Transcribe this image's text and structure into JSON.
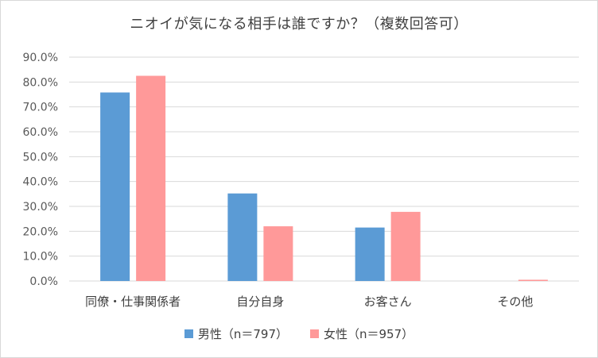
{
  "chart_data": {
    "type": "bar",
    "title": "ニオイが気になる相手は誰ですか？（複数回答可）",
    "categories": [
      "同僚・仕事関係者",
      "自分自身",
      "お客さん",
      "その他"
    ],
    "series": [
      {
        "name": "男性（n＝797）",
        "color": "#5b9bd5",
        "values": [
          75.8,
          35.2,
          21.5,
          0.0
        ]
      },
      {
        "name": "女性（n＝957）",
        "color": "#ff9999",
        "values": [
          82.5,
          22.0,
          27.8,
          0.5
        ]
      }
    ],
    "ylim": [
      0,
      90
    ],
    "yticks": [
      "0.0%",
      "10.0%",
      "20.0%",
      "30.0%",
      "40.0%",
      "50.0%",
      "60.0%",
      "70.0%",
      "80.0%",
      "90.0%"
    ],
    "grid": true,
    "legend_position": "bottom"
  }
}
